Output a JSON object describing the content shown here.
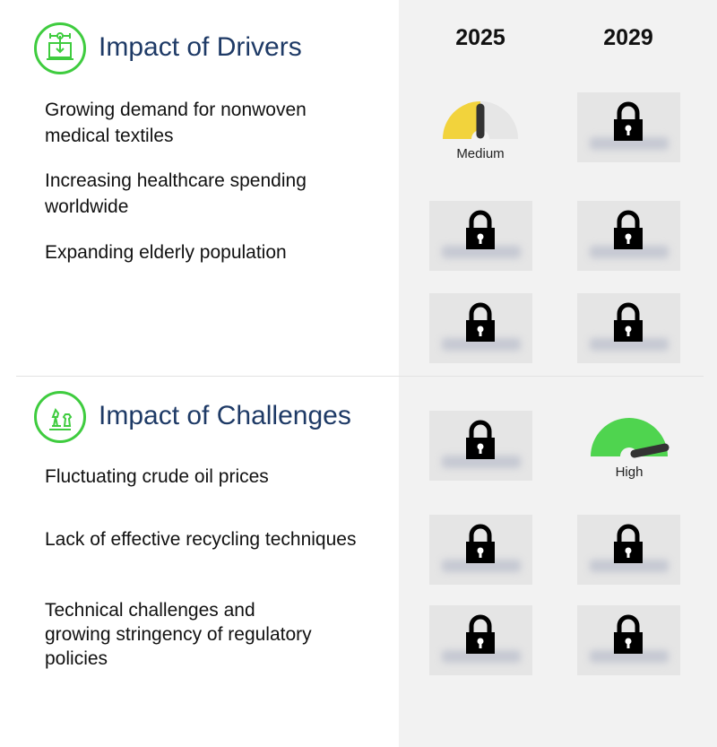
{
  "years": [
    "2025",
    "2029"
  ],
  "drivers": {
    "title": "Impact of Drivers",
    "icon": "machine-icon",
    "items": [
      "Growing demand for nonwoven medical textiles",
      "Increasing healthcare spending worldwide",
      "Expanding elderly population"
    ],
    "gauge_2025": {
      "label": "Medium",
      "level": "medium",
      "color": "#f2d33c"
    }
  },
  "challenges": {
    "title": "Impact of Challenges",
    "icon": "chess-icon",
    "items": [
      "Fluctuating crude oil prices",
      "Lack of effective recycling techniques",
      "Technical challenges and growing stringency of regulatory policies"
    ],
    "gauge_2029": {
      "label": "High",
      "level": "high",
      "color": "#4fd44f"
    }
  },
  "colors": {
    "accent": "#3fcc3f",
    "title": "#1e3a66",
    "panel": "#f2f2f2"
  }
}
